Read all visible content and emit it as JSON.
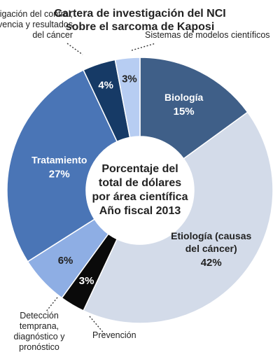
{
  "chart_data": {
    "type": "pie",
    "variant": "donut",
    "title": [
      "Cartera de investigación del NCI",
      "sobre el sarcoma de Kaposi"
    ],
    "center_text": [
      "Porcentaje del",
      "total de dólares",
      "por área científica",
      "Año fiscal 2013"
    ],
    "slices": [
      {
        "name_lines": [
          "Biología"
        ],
        "value": 15,
        "label": "15%",
        "color": "#3f5f88",
        "text_color": "#ffffff"
      },
      {
        "name_lines": [
          "Etiología (causas",
          "del cáncer)"
        ],
        "value": 42,
        "label": "42%",
        "color": "#d3dbe9",
        "text_color": "#222222"
      },
      {
        "name_lines": [
          "Prevención"
        ],
        "value": 3,
        "label": "3%",
        "color": "#0a0a0a",
        "text_color": "#ffffff"
      },
      {
        "name_lines": [
          "Detección",
          "temprana,",
          "diagnóstico y",
          "pronóstico"
        ],
        "value": 6,
        "label": "6%",
        "color": "#8eaee4",
        "text_color": "#222222"
      },
      {
        "name_lines": [
          "Tratamiento"
        ],
        "value": 27,
        "label": "27%",
        "color": "#4a75b6",
        "text_color": "#ffffff"
      },
      {
        "name_lines": [
          "Investigación del control,",
          "supervivencia y resultados",
          "del cáncer"
        ],
        "value": 4,
        "label": "4%",
        "color": "#163a66",
        "text_color": "#ffffff"
      },
      {
        "name_lines": [
          "Sistemas de modelos científicos"
        ],
        "value": 3,
        "label": "3%",
        "color": "#b7cdf2",
        "text_color": "#222222"
      }
    ]
  }
}
